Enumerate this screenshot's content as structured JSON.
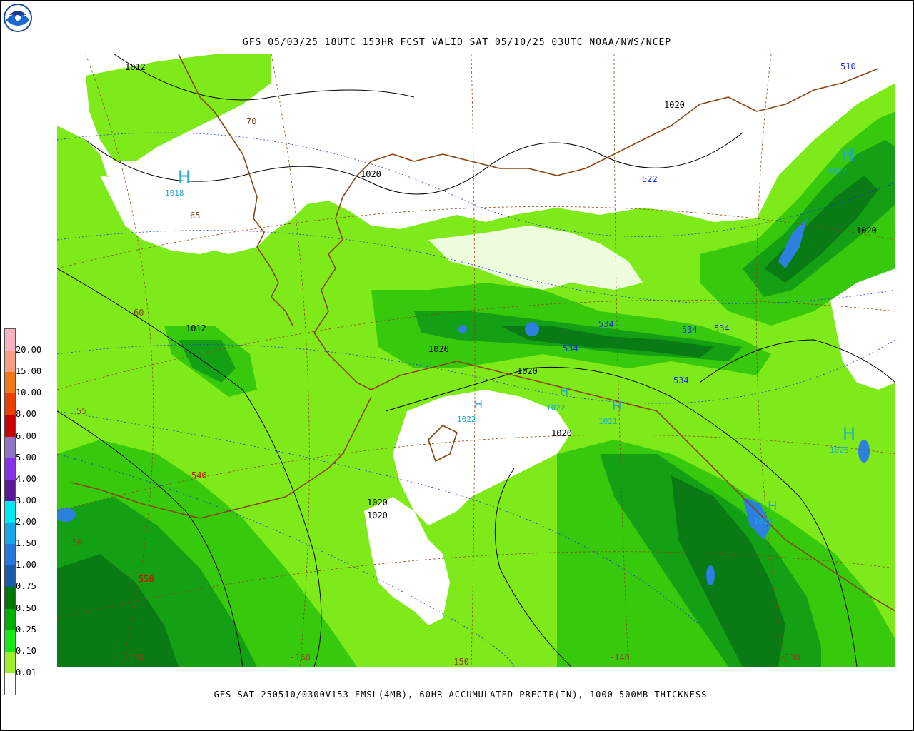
{
  "title": "GFS 05/03/25 18UTC 153HR FCST VALID SAT 05/10/25 03UTC NOAA/NWS/NCEP",
  "footer": "GFS SAT 250510/0300V153 EMSL(4MB), 60HR ACCUMULATED PRECIP(IN), 1000-500MB THICKNESS",
  "logo_text": "NOAA",
  "legend": {
    "labels": [
      "20.00",
      "15.00",
      "10.00",
      "8.00",
      "6.00",
      "5.00",
      "4.00",
      "3.00",
      "2.00",
      "1.50",
      "1.00",
      "0.75",
      "0.50",
      "0.25",
      "0.10",
      "0.01"
    ],
    "colors": [
      "#f8b4c4",
      "#f4a080",
      "#f07818",
      "#e84000",
      "#c80000",
      "#8f74c8",
      "#8830e8",
      "#5a1898",
      "#00e8f0",
      "#18a8e8",
      "#2878e0",
      "#1a5ca8",
      "#007800",
      "#00b000",
      "#18e818",
      "#a0f028",
      "#ffffff"
    ]
  },
  "colors": {
    "light_green": "#7fea1a",
    "green": "#36c90c",
    "mid_green": "#14a014",
    "dark_green": "#0a7a14",
    "blue": "#2d7fe0",
    "coast": "#8b4513"
  },
  "labels": {
    "pressure": [
      {
        "text": "1012"
      },
      {
        "text": "1020"
      },
      {
        "text": "1020"
      },
      {
        "text": "1012"
      },
      {
        "text": "1020"
      },
      {
        "text": "1020"
      },
      {
        "text": "1020"
      },
      {
        "text": "1020"
      },
      {
        "text": "1020"
      },
      {
        "text": "1020"
      }
    ],
    "thickness": [
      {
        "text": "510"
      },
      {
        "text": "522"
      },
      {
        "text": "534"
      },
      {
        "text": "534"
      },
      {
        "text": "534"
      },
      {
        "text": "534"
      },
      {
        "text": "534"
      }
    ],
    "highs": [
      {
        "mark": "H",
        "value": "1018"
      },
      {
        "mark": "H",
        "value": "1027"
      },
      {
        "mark": "H",
        "value": "1022"
      },
      {
        "mark": "H",
        "value": "1022"
      },
      {
        "mark": "H",
        "value": "1021"
      },
      {
        "mark": "H",
        "value": "1026"
      },
      {
        "mark": "H",
        "value": "1023"
      }
    ],
    "red": [
      {
        "text": "546"
      },
      {
        "text": "558"
      }
    ],
    "brown": [
      {
        "text": "70"
      },
      {
        "text": "65"
      },
      {
        "text": "60"
      },
      {
        "text": "55"
      },
      {
        "text": "50"
      },
      {
        "text": "-170"
      },
      {
        "text": "-160"
      },
      {
        "text": "-150"
      },
      {
        "text": "-140"
      },
      {
        "text": "-130"
      }
    ]
  }
}
